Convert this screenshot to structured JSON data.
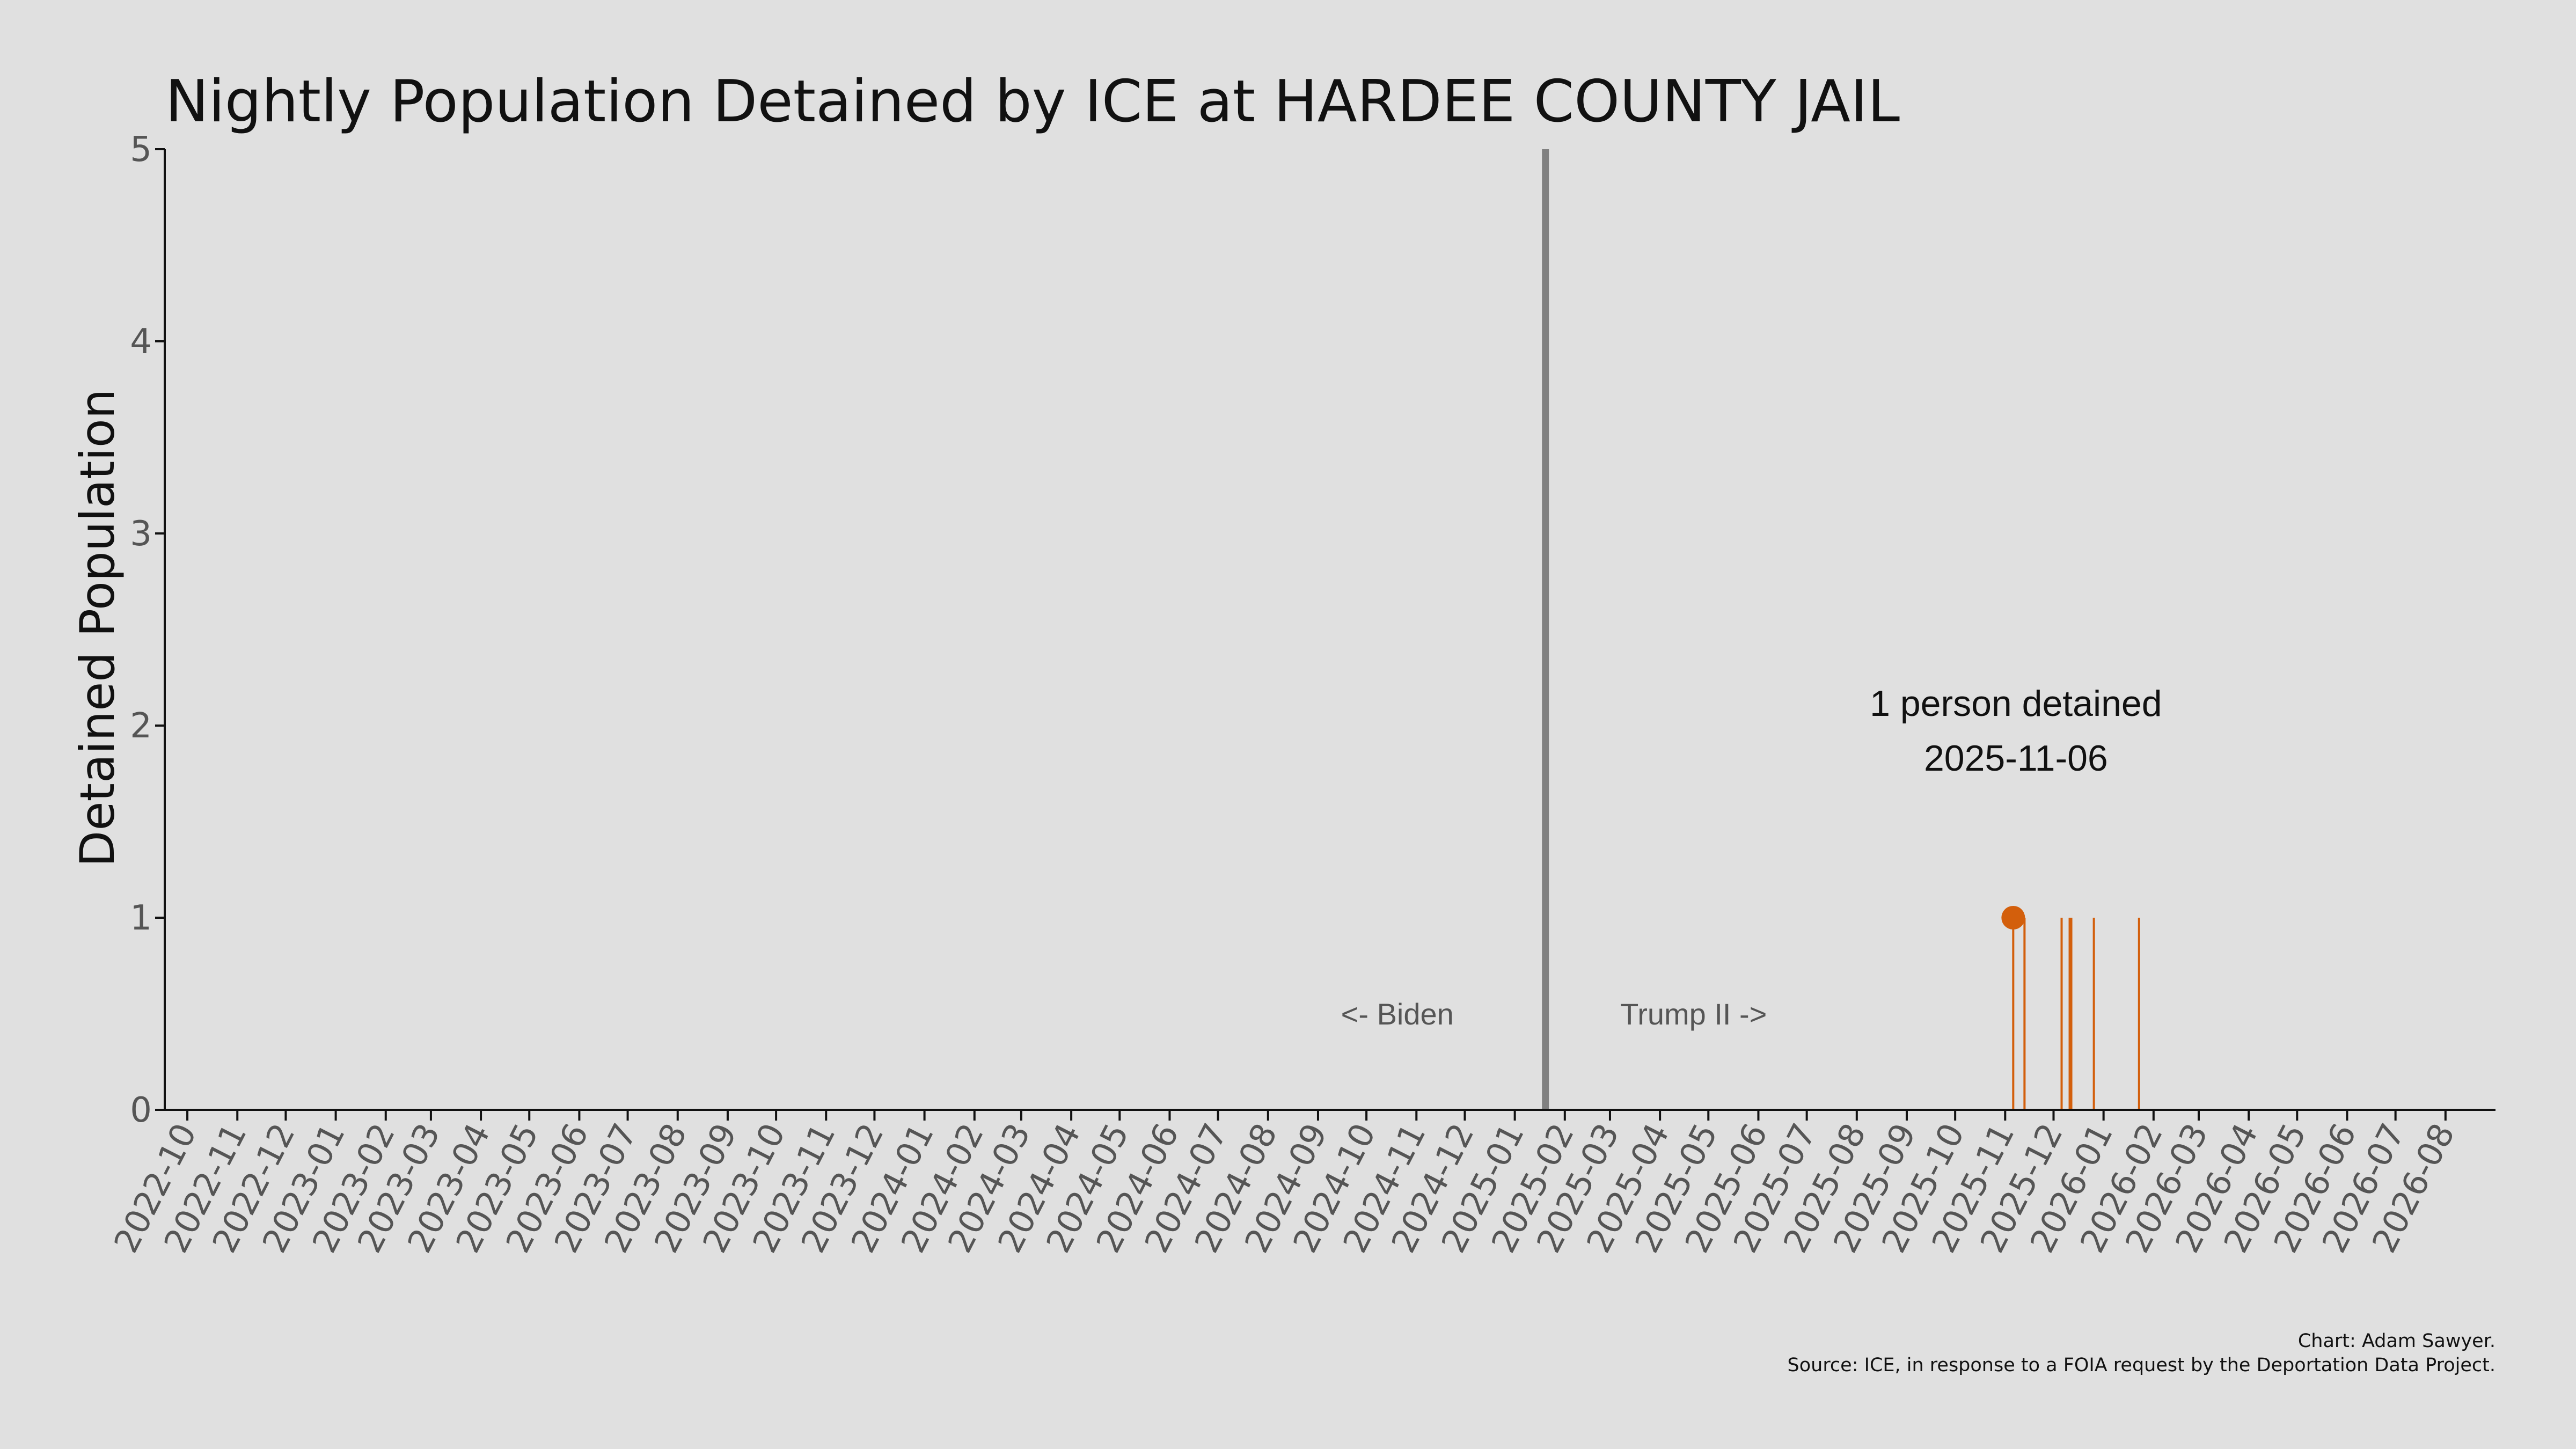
{
  "chart_data": {
    "type": "bar",
    "title": "Nightly Population Detained by ICE at HARDEE COUNTY JAIL",
    "ylabel": "Detained Population",
    "xlabel": "",
    "ylim": [
      0,
      5
    ],
    "yticks": [
      0,
      1,
      2,
      3,
      4,
      5
    ],
    "xlim": [
      "2022-09-17",
      "2026-09-01"
    ],
    "xticks": [
      "2022-10",
      "2022-11",
      "2022-12",
      "2023-01",
      "2023-02",
      "2023-03",
      "2023-04",
      "2023-05",
      "2023-06",
      "2023-07",
      "2023-08",
      "2023-09",
      "2023-10",
      "2023-11",
      "2023-12",
      "2024-01",
      "2024-02",
      "2024-03",
      "2024-04",
      "2024-05",
      "2024-06",
      "2024-07",
      "2024-08",
      "2024-09",
      "2024-10",
      "2024-11",
      "2024-12",
      "2025-01",
      "2025-02",
      "2025-03",
      "2025-04",
      "2025-05",
      "2025-06",
      "2025-07",
      "2025-08",
      "2025-09",
      "2025-10",
      "2025-11",
      "2025-12",
      "2026-01",
      "2026-02",
      "2026-03",
      "2026-04",
      "2026-05",
      "2026-06",
      "2026-07",
      "2026-08"
    ],
    "series": [
      {
        "x": [
          "2025-11-06",
          "2025-11-13",
          "2025-12-06",
          "2025-12-11",
          "2025-12-12",
          "2025-12-26",
          "2026-01-23"
        ],
        "values": [
          1,
          1,
          1,
          1,
          1,
          1,
          1
        ]
      }
    ],
    "reference_line": {
      "date": "2025-01-20"
    },
    "era_labels": {
      "left": "<- Biden",
      "right": "Trump II ->"
    },
    "highlight": {
      "date": "2025-11-06",
      "value": 1,
      "line1": "1 person detained",
      "line2": "2025-11-06"
    },
    "grid": false,
    "colors": {
      "bars": "#d35f0c",
      "reference_line": "#808080",
      "background": "#e0e0e0",
      "axis": "#111111"
    }
  },
  "credits": {
    "line1": "Chart: Adam Sawyer.",
    "line2": "Source: ICE, in response to a FOIA request by the Deportation Data Project."
  }
}
